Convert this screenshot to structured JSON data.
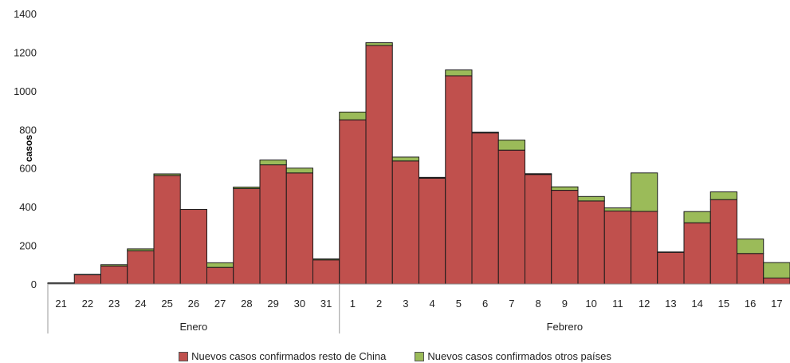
{
  "chart_data": {
    "type": "bar",
    "stacked": true,
    "ylabel": "casos",
    "ylim": [
      0,
      1400
    ],
    "yticks": [
      0,
      200,
      400,
      600,
      800,
      1000,
      1200,
      1400
    ],
    "categories": [
      "21",
      "22",
      "23",
      "24",
      "25",
      "26",
      "27",
      "28",
      "29",
      "30",
      "31",
      "1",
      "2",
      "3",
      "4",
      "5",
      "6",
      "7",
      "8",
      "9",
      "10",
      "11",
      "12",
      "13",
      "14",
      "15",
      "16",
      "17"
    ],
    "groups": [
      {
        "label": "Enero",
        "count": 11
      },
      {
        "label": "Febrero",
        "count": 17
      }
    ],
    "series": [
      {
        "name": "Nuevos casos confirmados resto de China",
        "color": "#C0504D",
        "values": [
          4,
          48,
          93,
          172,
          562,
          386,
          86,
          494,
          617,
          575,
          125,
          850,
          1235,
          637,
          548,
          1078,
          782,
          693,
          567,
          485,
          430,
          378,
          376,
          164,
          317,
          437,
          158,
          31
        ]
      },
      {
        "name": "Nuevos casos confirmados otros países",
        "color": "#9BBB59",
        "values": [
          2,
          2,
          7,
          10,
          8,
          0,
          24,
          8,
          25,
          25,
          5,
          40,
          14,
          20,
          4,
          30,
          4,
          52,
          4,
          18,
          23,
          16,
          199,
          2,
          58,
          40,
          75,
          80
        ]
      }
    ],
    "legend_position": "bottom"
  }
}
